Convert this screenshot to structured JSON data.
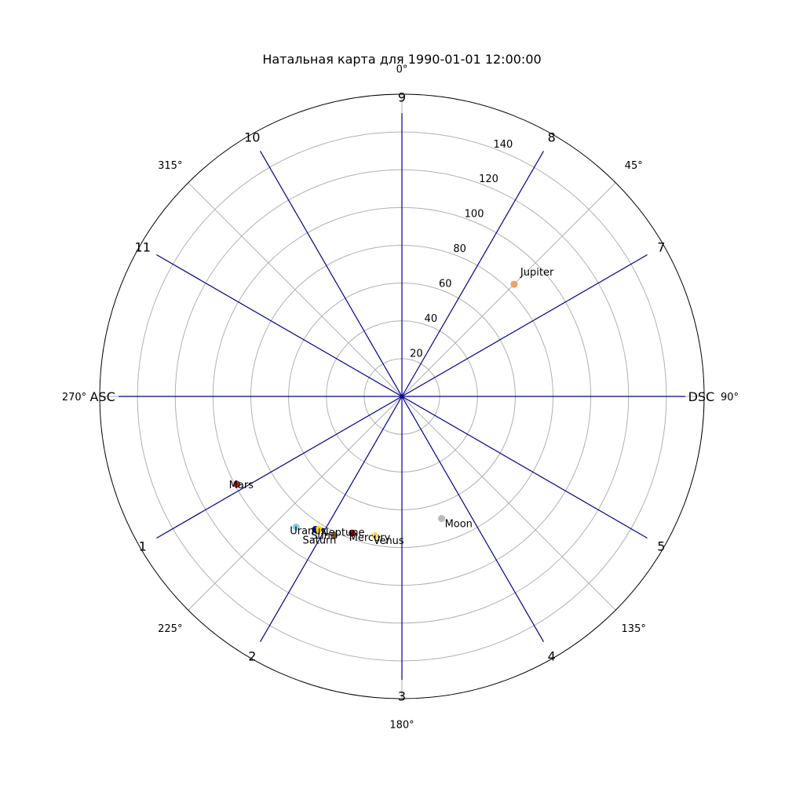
{
  "chart_data": {
    "type": "scatter",
    "projection": "polar",
    "theta_zero": "N",
    "theta_direction": "clockwise",
    "title": "Натальная карта для 1990-01-01 12:00:00",
    "rlim": [
      0,
      160
    ],
    "r_ticks": [
      20,
      40,
      60,
      80,
      100,
      120,
      140
    ],
    "r_tick_labels": [
      "20",
      "40",
      "60",
      "80",
      "100",
      "120",
      "140"
    ],
    "theta_ticks": [
      0,
      45,
      90,
      135,
      180,
      225,
      270,
      315
    ],
    "theta_tick_labels": [
      "0°",
      "45°",
      "90°",
      "135°",
      "180°",
      "225°",
      "270°",
      "315°"
    ],
    "grid": true,
    "house_line_color": "#00008b",
    "house_cusps": [
      {
        "label": "1",
        "theta": 240
      },
      {
        "label": "2",
        "theta": 210
      },
      {
        "label": "3",
        "theta": 180
      },
      {
        "label": "4",
        "theta": 150
      },
      {
        "label": "5",
        "theta": 120
      },
      {
        "label": "DSC",
        "theta": 90
      },
      {
        "label": "7",
        "theta": 60
      },
      {
        "label": "8",
        "theta": 30
      },
      {
        "label": "9",
        "theta": 0
      },
      {
        "label": "10",
        "theta": 330
      },
      {
        "label": "11",
        "theta": 300
      },
      {
        "label": "ASC",
        "theta": 270
      }
    ],
    "planets": [
      {
        "name": "Jupiter",
        "theta": 45,
        "r": 84,
        "color": "#f0a060"
      },
      {
        "name": "Moon",
        "theta": 162,
        "r": 68,
        "color": "#b8b8b8"
      },
      {
        "name": "Venus",
        "theta": 191,
        "r": 75,
        "color": "#f0dc78"
      },
      {
        "name": "Mercury",
        "theta": 200,
        "r": 77,
        "color": "#8b1a1a"
      },
      {
        "name": "Saturn",
        "theta": 206,
        "r": 82,
        "color": "#8b5a2b"
      },
      {
        "name": "Neptune",
        "theta": 213,
        "r": 84,
        "color": "#00008b"
      },
      {
        "name": "Sun",
        "theta": 212,
        "r": 83,
        "color": "#ffd700"
      },
      {
        "name": "Uranus",
        "theta": 219,
        "r": 89,
        "color": "#87ceeb"
      },
      {
        "name": "Mars",
        "theta": 242,
        "r": 99,
        "color": "#b22222"
      }
    ]
  }
}
